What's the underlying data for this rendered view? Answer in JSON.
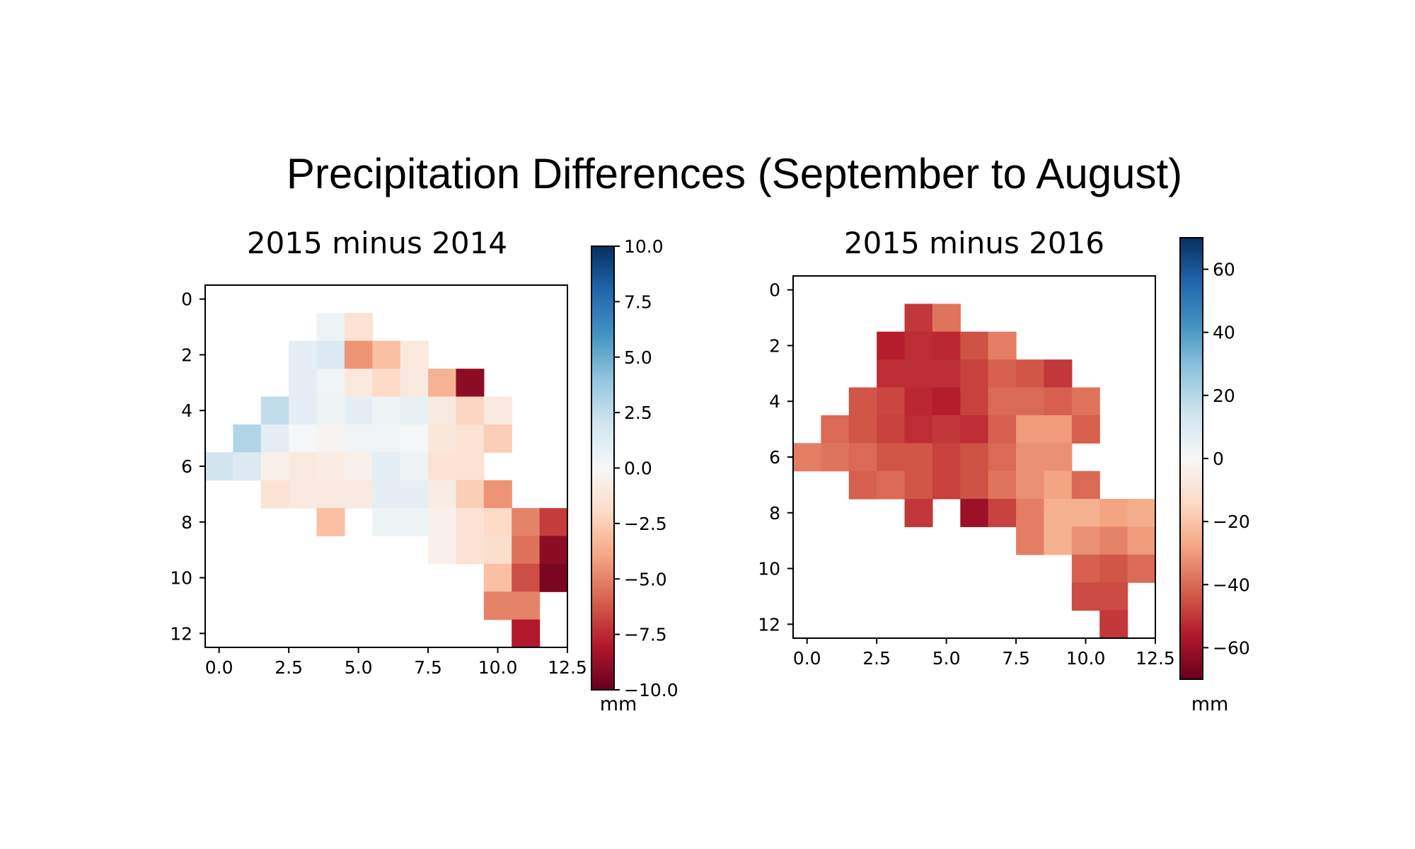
{
  "figure": {
    "suptitle": "Precipitation Differences (September to August)"
  },
  "chart_data": [
    {
      "type": "heatmap",
      "title": "2015 minus 2014",
      "xlabel": "",
      "ylabel": "",
      "colormap": "RdBu",
      "vmin": -10,
      "vmax": 10,
      "colorbar_label": "mm",
      "colorbar_ticks": [
        "10.0",
        "7.5",
        "5.0",
        "2.5",
        "0.0",
        "−2.5",
        "−5.0",
        "−7.5",
        "−10.0"
      ],
      "colorbar_tick_values": [
        10,
        7.5,
        5,
        2.5,
        0,
        -2.5,
        -5,
        -7.5,
        -10
      ],
      "x_ticks": [
        "0.0",
        "2.5",
        "5.0",
        "7.5",
        "10.0",
        "12.5"
      ],
      "x_tick_values": [
        0,
        2.5,
        5,
        7.5,
        10,
        12.5
      ],
      "y_ticks": [
        "0",
        "2",
        "4",
        "6",
        "8",
        "10",
        "12"
      ],
      "y_tick_values": [
        0,
        2,
        4,
        6,
        8,
        10,
        12
      ],
      "xlim": [
        -0.5,
        12.5
      ],
      "ylim": [
        12.5,
        -0.5
      ],
      "grid_shape": [
        13,
        13
      ],
      "values": [
        [
          null,
          null,
          null,
          null,
          null,
          null,
          null,
          null,
          null,
          null,
          null,
          null,
          null
        ],
        [
          null,
          null,
          null,
          null,
          0.5,
          -1.5,
          null,
          null,
          null,
          null,
          null,
          null,
          null
        ],
        [
          null,
          null,
          null,
          1,
          1.5,
          -4.5,
          -3,
          -1,
          null,
          null,
          null,
          null,
          null
        ],
        [
          null,
          null,
          null,
          1,
          0.3,
          -1,
          -2,
          -1,
          -3.5,
          -9,
          null,
          null,
          null
        ],
        [
          null,
          null,
          2.5,
          1,
          0.5,
          1,
          0.5,
          0.8,
          -1,
          -2.2,
          -1,
          null,
          null
        ],
        [
          null,
          3,
          1,
          0.1,
          -0.3,
          0.3,
          0.3,
          0.1,
          -1.2,
          -1.5,
          -2.5,
          null,
          null
        ],
        [
          2,
          1.5,
          -0.5,
          -1,
          -0.7,
          -0.5,
          1,
          0.5,
          -1.5,
          -1.5,
          null,
          null,
          null
        ],
        [
          null,
          null,
          -1.5,
          -1,
          -1,
          -1,
          1,
          1,
          -0.8,
          -2.5,
          -4.5,
          null,
          null
        ],
        [
          null,
          null,
          null,
          null,
          -3,
          null,
          0.5,
          0.5,
          -0.5,
          -1.5,
          -2,
          -5,
          -7
        ],
        [
          null,
          null,
          null,
          null,
          null,
          null,
          null,
          null,
          -0.5,
          -1.5,
          -1.8,
          -5.5,
          -9
        ],
        [
          null,
          null,
          null,
          null,
          null,
          null,
          null,
          null,
          null,
          null,
          -3,
          -6.5,
          -9.5
        ],
        [
          null,
          null,
          null,
          null,
          null,
          null,
          null,
          null,
          null,
          null,
          -5,
          -5,
          null
        ],
        [
          null,
          null,
          null,
          null,
          null,
          null,
          null,
          null,
          null,
          null,
          null,
          -8,
          null
        ]
      ]
    },
    {
      "type": "heatmap",
      "title": "2015 minus 2016",
      "xlabel": "",
      "ylabel": "",
      "colormap": "RdBu",
      "vmin": -70,
      "vmax": 70,
      "colorbar_label": "mm",
      "colorbar_ticks": [
        "60",
        "40",
        "20",
        "0",
        "−20",
        "−40",
        "−60"
      ],
      "colorbar_tick_values": [
        60,
        40,
        20,
        0,
        -20,
        -40,
        -60
      ],
      "x_ticks": [
        "0.0",
        "2.5",
        "5.0",
        "7.5",
        "10.0",
        "12.5"
      ],
      "x_tick_values": [
        0,
        2.5,
        5,
        7.5,
        10,
        12.5
      ],
      "y_ticks": [
        "0",
        "2",
        "4",
        "6",
        "8",
        "10",
        "12"
      ],
      "y_tick_values": [
        0,
        2,
        4,
        6,
        8,
        10,
        12
      ],
      "xlim": [
        -0.5,
        12.5
      ],
      "ylim": [
        12.5,
        -0.5
      ],
      "grid_shape": [
        13,
        13
      ],
      "values": [
        [
          null,
          null,
          null,
          null,
          null,
          null,
          null,
          null,
          null,
          null,
          null,
          null,
          null
        ],
        [
          null,
          null,
          null,
          null,
          -50,
          -38,
          null,
          null,
          null,
          null,
          null,
          null,
          null
        ],
        [
          null,
          null,
          null,
          -55,
          -52,
          -53,
          -45,
          -36,
          null,
          null,
          null,
          null,
          null
        ],
        [
          null,
          null,
          null,
          -52,
          -52,
          -52,
          -48,
          -42,
          -44,
          -50,
          null,
          null,
          null
        ],
        [
          null,
          null,
          -44,
          -47,
          -53,
          -55,
          -48,
          -40,
          -40,
          -42,
          -38,
          null,
          null
        ],
        [
          null,
          -40,
          -44,
          -48,
          -52,
          -50,
          -52,
          -42,
          -30,
          -30,
          -42,
          null,
          null
        ],
        [
          -36,
          -38,
          -40,
          -44,
          -44,
          -48,
          -45,
          -40,
          -32,
          -32,
          null,
          null,
          null
        ],
        [
          null,
          null,
          -42,
          -40,
          -44,
          -48,
          -45,
          -38,
          -32,
          -28,
          -40,
          null,
          null
        ],
        [
          null,
          null,
          null,
          null,
          -50,
          null,
          -60,
          -48,
          -36,
          -25,
          -25,
          -28,
          -26
        ],
        [
          null,
          null,
          null,
          null,
          null,
          null,
          null,
          null,
          -36,
          -25,
          -32,
          -35,
          -30
        ],
        [
          null,
          null,
          null,
          null,
          null,
          null,
          null,
          null,
          null,
          null,
          -42,
          -44,
          -40
        ],
        [
          null,
          null,
          null,
          null,
          null,
          null,
          null,
          null,
          null,
          null,
          -46,
          -46,
          null
        ],
        [
          null,
          null,
          null,
          null,
          null,
          null,
          null,
          null,
          null,
          null,
          null,
          -50,
          null
        ]
      ]
    }
  ]
}
